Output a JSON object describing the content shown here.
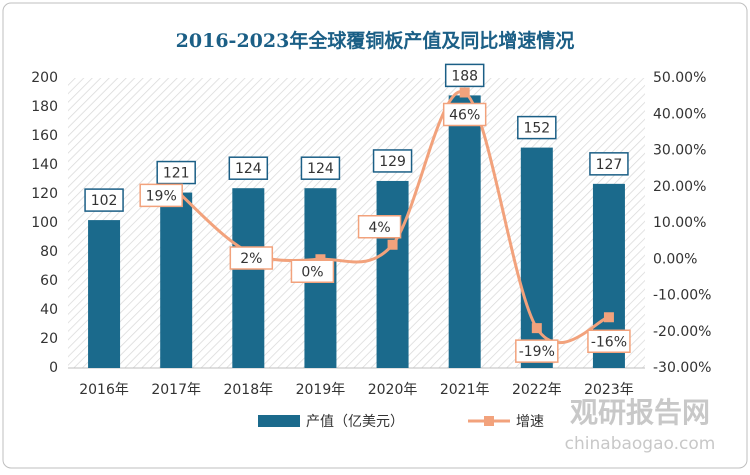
{
  "chart_data": {
    "type": "bar",
    "title": "2016-2023年全球覆铜板产值及同比增速情况",
    "categories": [
      "2016年",
      "2017年",
      "2018年",
      "2019年",
      "2020年",
      "2021年",
      "2022年",
      "2023年"
    ],
    "series": [
      {
        "name": "产值（亿美元）",
        "type": "bar",
        "color": "#1b6a8c",
        "values": [
          102,
          121,
          124,
          124,
          129,
          188,
          152,
          127
        ]
      },
      {
        "name": "增速",
        "type": "line",
        "axis": "y2",
        "color": "#f2a27c",
        "values": [
          null,
          19,
          2,
          0,
          4,
          46,
          -19,
          -16
        ],
        "value_labels": [
          null,
          "19%",
          "2%",
          "0%",
          "4%",
          "46%",
          "-19%",
          "-16%"
        ]
      }
    ],
    "ylim": [
      0,
      200
    ],
    "yticks": [
      0,
      20,
      40,
      60,
      80,
      100,
      120,
      140,
      160,
      180,
      200
    ],
    "y2lim": [
      -30,
      50
    ],
    "y2ticks": [
      {
        "value": -30,
        "label": "-30.00%"
      },
      {
        "value": -20,
        "label": "-20.00%"
      },
      {
        "value": -10,
        "label": "-10.00%"
      },
      {
        "value": 0,
        "label": "0.00%"
      },
      {
        "value": 10,
        "label": "10.00%"
      },
      {
        "value": 20,
        "label": "20.00%"
      },
      {
        "value": 30,
        "label": "30.00%"
      },
      {
        "value": 40,
        "label": "40.00%"
      },
      {
        "value": 50,
        "label": "50.00%"
      }
    ],
    "watermark": {
      "name": "观研报告网",
      "url": "chinabaogao.com"
    }
  }
}
